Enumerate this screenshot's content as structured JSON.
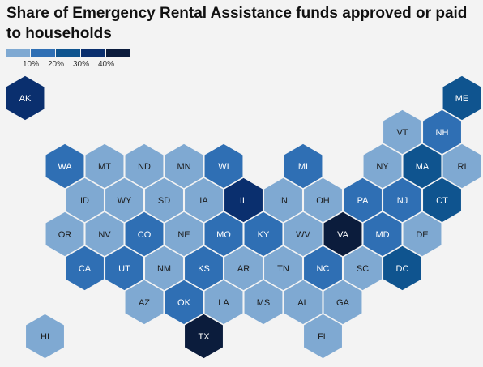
{
  "title": "Share of Emergency Rental Assistance funds approved or paid to households",
  "legend": {
    "colors": [
      "#7fa9d2",
      "#2f6fb4",
      "#0f548f",
      "#0a2f6e",
      "#0b1c3c"
    ],
    "labels": [
      "10%",
      "20%",
      "30%",
      "40%"
    ]
  },
  "states": [
    {
      "abbr": "AK",
      "bucket": 3,
      "row": 0,
      "col": 0
    },
    {
      "abbr": "ME",
      "bucket": 2,
      "row": 0,
      "col": 11
    },
    {
      "abbr": "VT",
      "bucket": 0,
      "row": 1,
      "col": 9.5
    },
    {
      "abbr": "NH",
      "bucket": 1,
      "row": 1,
      "col": 10.5
    },
    {
      "abbr": "WA",
      "bucket": 1,
      "row": 2,
      "col": 1
    },
    {
      "abbr": "MT",
      "bucket": 0,
      "row": 2,
      "col": 2
    },
    {
      "abbr": "ND",
      "bucket": 0,
      "row": 2,
      "col": 3
    },
    {
      "abbr": "MN",
      "bucket": 0,
      "row": 2,
      "col": 4
    },
    {
      "abbr": "WI",
      "bucket": 1,
      "row": 2,
      "col": 5
    },
    {
      "abbr": "MI",
      "bucket": 1,
      "row": 2,
      "col": 7
    },
    {
      "abbr": "NY",
      "bucket": 0,
      "row": 2,
      "col": 9
    },
    {
      "abbr": "MA",
      "bucket": 2,
      "row": 2,
      "col": 10
    },
    {
      "abbr": "RI",
      "bucket": 0,
      "row": 2,
      "col": 11
    },
    {
      "abbr": "ID",
      "bucket": 0,
      "row": 3,
      "col": 1.5
    },
    {
      "abbr": "WY",
      "bucket": 0,
      "row": 3,
      "col": 2.5
    },
    {
      "abbr": "SD",
      "bucket": 0,
      "row": 3,
      "col": 3.5
    },
    {
      "abbr": "IA",
      "bucket": 0,
      "row": 3,
      "col": 4.5
    },
    {
      "abbr": "IL",
      "bucket": 3,
      "row": 3,
      "col": 5.5
    },
    {
      "abbr": "IN",
      "bucket": 0,
      "row": 3,
      "col": 6.5
    },
    {
      "abbr": "OH",
      "bucket": 0,
      "row": 3,
      "col": 7.5
    },
    {
      "abbr": "PA",
      "bucket": 1,
      "row": 3,
      "col": 8.5
    },
    {
      "abbr": "NJ",
      "bucket": 1,
      "row": 3,
      "col": 9.5
    },
    {
      "abbr": "CT",
      "bucket": 2,
      "row": 3,
      "col": 10.5
    },
    {
      "abbr": "OR",
      "bucket": 0,
      "row": 4,
      "col": 1
    },
    {
      "abbr": "NV",
      "bucket": 0,
      "row": 4,
      "col": 2
    },
    {
      "abbr": "CO",
      "bucket": 1,
      "row": 4,
      "col": 3
    },
    {
      "abbr": "NE",
      "bucket": 0,
      "row": 4,
      "col": 4
    },
    {
      "abbr": "MO",
      "bucket": 1,
      "row": 4,
      "col": 5
    },
    {
      "abbr": "KY",
      "bucket": 1,
      "row": 4,
      "col": 6
    },
    {
      "abbr": "WV",
      "bucket": 0,
      "row": 4,
      "col": 7
    },
    {
      "abbr": "VA",
      "bucket": 4,
      "row": 4,
      "col": 8
    },
    {
      "abbr": "MD",
      "bucket": 1,
      "row": 4,
      "col": 9
    },
    {
      "abbr": "DE",
      "bucket": 0,
      "row": 4,
      "col": 10
    },
    {
      "abbr": "CA",
      "bucket": 1,
      "row": 5,
      "col": 1.5
    },
    {
      "abbr": "UT",
      "bucket": 1,
      "row": 5,
      "col": 2.5
    },
    {
      "abbr": "NM",
      "bucket": 0,
      "row": 5,
      "col": 3.5
    },
    {
      "abbr": "KS",
      "bucket": 1,
      "row": 5,
      "col": 4.5
    },
    {
      "abbr": "AR",
      "bucket": 0,
      "row": 5,
      "col": 5.5
    },
    {
      "abbr": "TN",
      "bucket": 0,
      "row": 5,
      "col": 6.5
    },
    {
      "abbr": "NC",
      "bucket": 1,
      "row": 5,
      "col": 7.5
    },
    {
      "abbr": "SC",
      "bucket": 0,
      "row": 5,
      "col": 8.5
    },
    {
      "abbr": "DC",
      "bucket": 2,
      "row": 5,
      "col": 9.5
    },
    {
      "abbr": "AZ",
      "bucket": 0,
      "row": 6,
      "col": 3
    },
    {
      "abbr": "OK",
      "bucket": 1,
      "row": 6,
      "col": 4
    },
    {
      "abbr": "LA",
      "bucket": 0,
      "row": 6,
      "col": 5
    },
    {
      "abbr": "MS",
      "bucket": 0,
      "row": 6,
      "col": 6
    },
    {
      "abbr": "AL",
      "bucket": 0,
      "row": 6,
      "col": 7
    },
    {
      "abbr": "GA",
      "bucket": 0,
      "row": 6,
      "col": 8
    },
    {
      "abbr": "HI",
      "bucket": 0,
      "row": 7,
      "col": 0.5
    },
    {
      "abbr": "TX",
      "bucket": 4,
      "row": 7,
      "col": 4.5
    },
    {
      "abbr": "FL",
      "bucket": 0,
      "row": 7,
      "col": 7.5
    }
  ]
}
